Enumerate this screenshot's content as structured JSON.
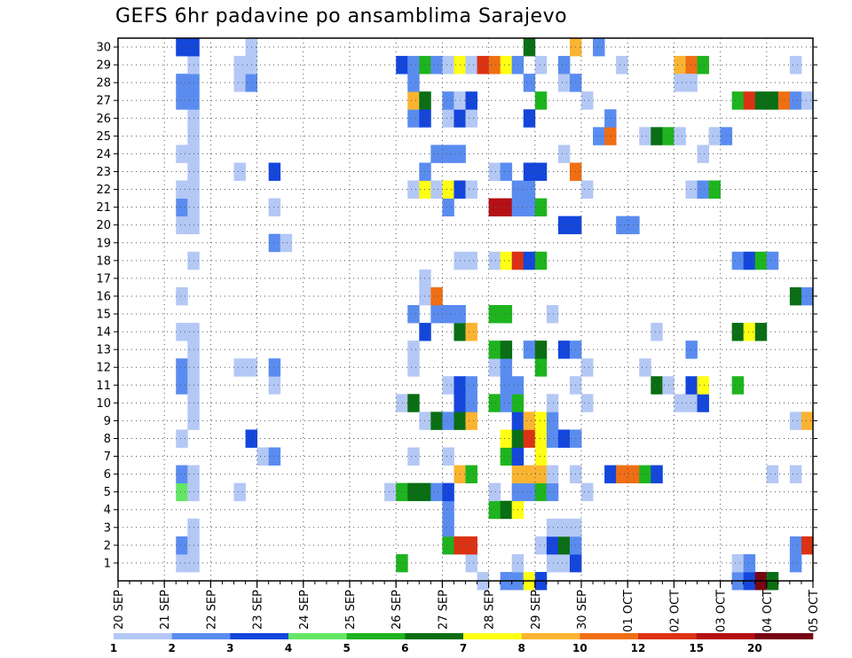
{
  "chart_data": {
    "type": "heatmap",
    "title": "GEFS 6hr padavine po ansamblima Sarajevo",
    "xlabel": "",
    "ylabel": "",
    "x_steps": 60,
    "x_ticks": [
      {
        "step": 0,
        "label": "20 SEP"
      },
      {
        "step": 4,
        "label": "21 SEP"
      },
      {
        "step": 8,
        "label": "22 SEP"
      },
      {
        "step": 12,
        "label": "23 SEP"
      },
      {
        "step": 16,
        "label": "24 SEP"
      },
      {
        "step": 20,
        "label": "25 SEP"
      },
      {
        "step": 24,
        "label": "26 SEP"
      },
      {
        "step": 28,
        "label": "27 SEP"
      },
      {
        "step": 32,
        "label": "28 SEP"
      },
      {
        "step": 36,
        "label": "29 SEP"
      },
      {
        "step": 40,
        "label": "30 SEP"
      },
      {
        "step": 44,
        "label": "01 OCT"
      },
      {
        "step": 48,
        "label": "02 OCT"
      },
      {
        "step": 52,
        "label": "03 OCT"
      },
      {
        "step": 56,
        "label": "04 OCT"
      },
      {
        "step": 60,
        "label": "05 OCT"
      }
    ],
    "y_ticks": [
      "1",
      "2",
      "3",
      "4",
      "5",
      "6",
      "7",
      "8",
      "9",
      "10",
      "11",
      "12",
      "13",
      "14",
      "15",
      "16",
      "17",
      "18",
      "19",
      "20",
      "21",
      "22",
      "23",
      "24",
      "25",
      "26",
      "27",
      "28",
      "29",
      "30"
    ],
    "grid": true,
    "legend": {
      "placement": "bottom",
      "labels": [
        "1",
        "2",
        "3",
        "4",
        "5",
        "6",
        "7",
        "8",
        "10",
        "12",
        "15",
        "20"
      ],
      "colors": [
        "#b4c8f5",
        "#5a8cf0",
        "#1446dc",
        "#64e664",
        "#1eb41e",
        "#0a6e14",
        "#ffff14",
        "#fab432",
        "#f06e14",
        "#dc3214",
        "#b40f14",
        "#780514"
      ]
    },
    "cells": [
      [
        5,
        1,
        0
      ],
      [
        5,
        2,
        1
      ],
      [
        5,
        5,
        3
      ],
      [
        5,
        6,
        1
      ],
      [
        5,
        8,
        0
      ],
      [
        5,
        11,
        1
      ],
      [
        5,
        12,
        1
      ],
      [
        5,
        14,
        0
      ],
      [
        5,
        16,
        0
      ],
      [
        5,
        20,
        0
      ],
      [
        5,
        21,
        1
      ],
      [
        5,
        22,
        0
      ],
      [
        5,
        24,
        0
      ],
      [
        5,
        27,
        1
      ],
      [
        5,
        28,
        1
      ],
      [
        5,
        30,
        2
      ],
      [
        6,
        1,
        0
      ],
      [
        6,
        2,
        0
      ],
      [
        6,
        3,
        0
      ],
      [
        6,
        5,
        0
      ],
      [
        6,
        6,
        0
      ],
      [
        6,
        9,
        0
      ],
      [
        6,
        10,
        0
      ],
      [
        6,
        11,
        0
      ],
      [
        6,
        12,
        0
      ],
      [
        6,
        13,
        0
      ],
      [
        6,
        14,
        0
      ],
      [
        6,
        18,
        0
      ],
      [
        6,
        20,
        0
      ],
      [
        6,
        21,
        0
      ],
      [
        6,
        22,
        0
      ],
      [
        6,
        23,
        0
      ],
      [
        6,
        24,
        0
      ],
      [
        6,
        25,
        0
      ],
      [
        6,
        26,
        0
      ],
      [
        6,
        27,
        1
      ],
      [
        6,
        28,
        1
      ],
      [
        6,
        29,
        0
      ],
      [
        6,
        30,
        2
      ],
      [
        10,
        5,
        0
      ],
      [
        10,
        12,
        0
      ],
      [
        10,
        23,
        0
      ],
      [
        10,
        28,
        0
      ],
      [
        10,
        29,
        0
      ],
      [
        11,
        12,
        0
      ],
      [
        11,
        28,
        1
      ],
      [
        11,
        29,
        0
      ],
      [
        11,
        30,
        0
      ],
      [
        11,
        8,
        2
      ],
      [
        13,
        23,
        2
      ],
      [
        13,
        19,
        1
      ],
      [
        14,
        19,
        0
      ],
      [
        13,
        21,
        0
      ],
      [
        13,
        11,
        0
      ],
      [
        13,
        12,
        1
      ],
      [
        12,
        7,
        0
      ],
      [
        13,
        7,
        1
      ],
      [
        23,
        5,
        0
      ],
      [
        24,
        1,
        4
      ],
      [
        24,
        5,
        4
      ],
      [
        24,
        10,
        0
      ],
      [
        25,
        5,
        5
      ],
      [
        25,
        10,
        5
      ],
      [
        25,
        12,
        0
      ],
      [
        25,
        13,
        0
      ],
      [
        25,
        15,
        1
      ],
      [
        25,
        22,
        0
      ],
      [
        25,
        26,
        1
      ],
      [
        25,
        27,
        7
      ],
      [
        25,
        28,
        1
      ],
      [
        24,
        29,
        2
      ],
      [
        25,
        29,
        1
      ],
      [
        25,
        7,
        0
      ],
      [
        26,
        5,
        5
      ],
      [
        26,
        9,
        0
      ],
      [
        26,
        14,
        2
      ],
      [
        26,
        16,
        0
      ],
      [
        26,
        17,
        0
      ],
      [
        26,
        22,
        6
      ],
      [
        26,
        23,
        1
      ],
      [
        26,
        26,
        2
      ],
      [
        26,
        27,
        5
      ],
      [
        26,
        29,
        4
      ],
      [
        27,
        5,
        1
      ],
      [
        27,
        9,
        5
      ],
      [
        27,
        15,
        1
      ],
      [
        27,
        16,
        8
      ],
      [
        27,
        22,
        0
      ],
      [
        27,
        24,
        1
      ],
      [
        27,
        29,
        1
      ],
      [
        28,
        2,
        4
      ],
      [
        28,
        3,
        1
      ],
      [
        28,
        4,
        1
      ],
      [
        28,
        5,
        2
      ],
      [
        28,
        7,
        0
      ],
      [
        28,
        9,
        1
      ],
      [
        28,
        11,
        0
      ],
      [
        28,
        15,
        1
      ],
      [
        28,
        21,
        1
      ],
      [
        28,
        22,
        6
      ],
      [
        28,
        24,
        1
      ],
      [
        28,
        26,
        0
      ],
      [
        28,
        27,
        1
      ],
      [
        28,
        29,
        0
      ],
      [
        29,
        2,
        9
      ],
      [
        29,
        6,
        7
      ],
      [
        29,
        9,
        5
      ],
      [
        29,
        10,
        2
      ],
      [
        29,
        11,
        2
      ],
      [
        29,
        14,
        5
      ],
      [
        29,
        15,
        1
      ],
      [
        29,
        18,
        0
      ],
      [
        29,
        22,
        2
      ],
      [
        29,
        24,
        1
      ],
      [
        29,
        26,
        2
      ],
      [
        29,
        27,
        0
      ],
      [
        29,
        29,
        6
      ],
      [
        30,
        1,
        0
      ],
      [
        30,
        2,
        9
      ],
      [
        30,
        6,
        4
      ],
      [
        30,
        9,
        7
      ],
      [
        30,
        10,
        1
      ],
      [
        30,
        11,
        1
      ],
      [
        30,
        14,
        7
      ],
      [
        30,
        18,
        0
      ],
      [
        30,
        22,
        0
      ],
      [
        30,
        26,
        0
      ],
      [
        30,
        27,
        2
      ],
      [
        30,
        29,
        0
      ],
      [
        31,
        0,
        0
      ],
      [
        31,
        29,
        9
      ],
      [
        32,
        4,
        4
      ],
      [
        32,
        5,
        0
      ],
      [
        32,
        10,
        4
      ],
      [
        32,
        12,
        0
      ],
      [
        32,
        13,
        4
      ],
      [
        32,
        15,
        4
      ],
      [
        32,
        18,
        0
      ],
      [
        32,
        21,
        10
      ],
      [
        32,
        23,
        0
      ],
      [
        32,
        29,
        8
      ],
      [
        33,
        0,
        1
      ],
      [
        33,
        4,
        5
      ],
      [
        33,
        7,
        4
      ],
      [
        33,
        8,
        6
      ],
      [
        33,
        10,
        1
      ],
      [
        33,
        11,
        1
      ],
      [
        33,
        12,
        1
      ],
      [
        33,
        13,
        5
      ],
      [
        33,
        15,
        4
      ],
      [
        33,
        18,
        6
      ],
      [
        33,
        21,
        10
      ],
      [
        33,
        23,
        1
      ],
      [
        33,
        29,
        6
      ],
      [
        34,
        0,
        1
      ],
      [
        34,
        1,
        0
      ],
      [
        34,
        4,
        6
      ],
      [
        34,
        5,
        1
      ],
      [
        34,
        6,
        7
      ],
      [
        34,
        7,
        2
      ],
      [
        34,
        8,
        5
      ],
      [
        34,
        9,
        2
      ],
      [
        34,
        10,
        4
      ],
      [
        34,
        11,
        1
      ],
      [
        34,
        18,
        9
      ],
      [
        34,
        21,
        1
      ],
      [
        34,
        22,
        1
      ],
      [
        34,
        29,
        1
      ],
      [
        35,
        0,
        6
      ],
      [
        35,
        5,
        1
      ],
      [
        35,
        6,
        7
      ],
      [
        35,
        8,
        9
      ],
      [
        35,
        9,
        7
      ],
      [
        35,
        13,
        1
      ],
      [
        35,
        18,
        2
      ],
      [
        35,
        21,
        1
      ],
      [
        35,
        22,
        1
      ],
      [
        35,
        23,
        2
      ],
      [
        35,
        26,
        2
      ],
      [
        35,
        28,
        1
      ],
      [
        35,
        30,
        5
      ],
      [
        36,
        0,
        2
      ],
      [
        36,
        2,
        0
      ],
      [
        36,
        5,
        4
      ],
      [
        36,
        6,
        7
      ],
      [
        36,
        7,
        6
      ],
      [
        36,
        8,
        6
      ],
      [
        36,
        9,
        6
      ],
      [
        36,
        12,
        4
      ],
      [
        36,
        13,
        5
      ],
      [
        36,
        18,
        4
      ],
      [
        36,
        21,
        4
      ],
      [
        36,
        23,
        2
      ],
      [
        36,
        27,
        4
      ],
      [
        36,
        29,
        0
      ],
      [
        37,
        1,
        0
      ],
      [
        37,
        2,
        2
      ],
      [
        37,
        3,
        0
      ],
      [
        37,
        5,
        1
      ],
      [
        37,
        6,
        0
      ],
      [
        37,
        8,
        1
      ],
      [
        37,
        9,
        1
      ],
      [
        37,
        10,
        0
      ],
      [
        37,
        15,
        0
      ],
      [
        38,
        1,
        0
      ],
      [
        38,
        2,
        5
      ],
      [
        38,
        3,
        0
      ],
      [
        38,
        8,
        2
      ],
      [
        38,
        13,
        2
      ],
      [
        38,
        20,
        2
      ],
      [
        38,
        24,
        0
      ],
      [
        38,
        28,
        0
      ],
      [
        38,
        29,
        1
      ],
      [
        39,
        1,
        2
      ],
      [
        39,
        2,
        1
      ],
      [
        39,
        3,
        0
      ],
      [
        39,
        6,
        0
      ],
      [
        39,
        8,
        1
      ],
      [
        39,
        11,
        0
      ],
      [
        39,
        13,
        1
      ],
      [
        39,
        20,
        2
      ],
      [
        39,
        23,
        8
      ],
      [
        39,
        30,
        7
      ],
      [
        39,
        28,
        1
      ],
      [
        40,
        5,
        0
      ],
      [
        40,
        10,
        0
      ],
      [
        40,
        12,
        0
      ],
      [
        40,
        22,
        0
      ],
      [
        40,
        27,
        0
      ],
      [
        41,
        25,
        1
      ],
      [
        41,
        30,
        1
      ],
      [
        42,
        25,
        8
      ],
      [
        42,
        26,
        1
      ],
      [
        42,
        6,
        2
      ],
      [
        43,
        6,
        8
      ],
      [
        44,
        6,
        8
      ],
      [
        45,
        6,
        4
      ],
      [
        46,
        6,
        2
      ],
      [
        43,
        20,
        1
      ],
      [
        43,
        29,
        0
      ],
      [
        44,
        20,
        1
      ],
      [
        45,
        12,
        0
      ],
      [
        45,
        25,
        0
      ],
      [
        46,
        14,
        0
      ],
      [
        46,
        11,
        5
      ],
      [
        46,
        25,
        5
      ],
      [
        47,
        25,
        4
      ],
      [
        47,
        11,
        0
      ],
      [
        48,
        25,
        0
      ],
      [
        48,
        29,
        7
      ],
      [
        48,
        28,
        0
      ],
      [
        49,
        29,
        8
      ],
      [
        49,
        28,
        0
      ],
      [
        50,
        29,
        4
      ],
      [
        48,
        10,
        0
      ],
      [
        49,
        10,
        0
      ],
      [
        49,
        13,
        1
      ],
      [
        49,
        11,
        2
      ],
      [
        49,
        22,
        0
      ],
      [
        50,
        10,
        2
      ],
      [
        50,
        11,
        6
      ],
      [
        50,
        22,
        1
      ],
      [
        50,
        24,
        0
      ],
      [
        51,
        22,
        4
      ],
      [
        51,
        25,
        0
      ],
      [
        52,
        25,
        1
      ],
      [
        53,
        0,
        1
      ],
      [
        53,
        1,
        0
      ],
      [
        53,
        14,
        5
      ],
      [
        53,
        11,
        4
      ],
      [
        53,
        18,
        1
      ],
      [
        53,
        27,
        4
      ],
      [
        54,
        0,
        2
      ],
      [
        54,
        1,
        1
      ],
      [
        54,
        18,
        2
      ],
      [
        54,
        27,
        9
      ],
      [
        54,
        14,
        6
      ],
      [
        55,
        18,
        4
      ],
      [
        55,
        27,
        5
      ],
      [
        55,
        14,
        5
      ],
      [
        55,
        0,
        11
      ],
      [
        56,
        0,
        5
      ],
      [
        56,
        18,
        1
      ],
      [
        56,
        27,
        5
      ],
      [
        57,
        27,
        8
      ],
      [
        58,
        27,
        1
      ],
      [
        56,
        6,
        0
      ],
      [
        58,
        9,
        0
      ],
      [
        58,
        6,
        0
      ],
      [
        58,
        1,
        1
      ],
      [
        58,
        2,
        1
      ],
      [
        58,
        16,
        5
      ],
      [
        58,
        29,
        0
      ],
      [
        59,
        27,
        0
      ],
      [
        59,
        2,
        9
      ],
      [
        59,
        9,
        7
      ],
      [
        59,
        16,
        1
      ]
    ]
  }
}
